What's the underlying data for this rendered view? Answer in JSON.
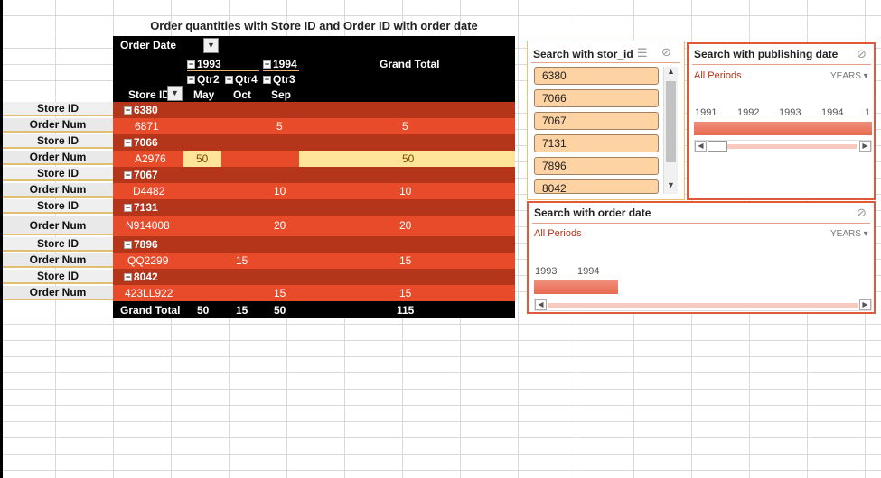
{
  "pivot": {
    "title": "Order quantities with Store ID and Order ID with order date",
    "order_date_label": "Order Date",
    "year_1993": "1993",
    "year_1994": "1994",
    "grand_total_label": "Grand Total",
    "qtr2": "Qtr2",
    "qtr4": "Qtr4",
    "qtr3": "Qtr3",
    "store_id_label": "Store ID",
    "month_may": "May",
    "month_oct": "Oct",
    "month_sep": "Sep",
    "rows": [
      {
        "store": "6380",
        "order": "6871",
        "may": "",
        "oct": "",
        "sep": "5",
        "total": "5"
      },
      {
        "store": "7066",
        "order": "A2976",
        "may": "50",
        "oct": "",
        "sep": "",
        "total": "50"
      },
      {
        "store": "7067",
        "order": "D4482",
        "may": "",
        "oct": "",
        "sep": "10",
        "total": "10"
      },
      {
        "store": "7131",
        "order": "N914008",
        "may": "",
        "oct": "",
        "sep": "20",
        "total": "20"
      },
      {
        "store": "7896",
        "order": "QQ2299",
        "may": "",
        "oct": "15",
        "sep": "",
        "total": "15"
      },
      {
        "store": "8042",
        "order": "423LL922",
        "may": "",
        "oct": "",
        "sep": "15",
        "total": "15"
      }
    ],
    "grand_totals": {
      "label": "Grand Total",
      "may": "50",
      "oct": "15",
      "sep": "50",
      "total": "115"
    }
  },
  "left_labels": {
    "store_id": "Store ID",
    "order_num": "Order Num"
  },
  "slicer_stor": {
    "title": "Search with stor_id",
    "items": [
      "6380",
      "7066",
      "7067",
      "7131",
      "7896",
      "8042"
    ]
  },
  "timeline_pub": {
    "title": "Search with publishing date",
    "all_periods": "All Periods",
    "level": "YEARS",
    "years": [
      "1991",
      "1992",
      "1993",
      "1994",
      "1"
    ]
  },
  "timeline_order": {
    "title": "Search with order date",
    "all_periods": "All Periods",
    "level": "YEARS",
    "years": [
      "1993",
      "1994"
    ]
  },
  "colors": {
    "store_row": "#b5351a",
    "order_row": "#e84b2a",
    "highlight": "#ffe599",
    "slicer_item": "#fdd3a3"
  }
}
